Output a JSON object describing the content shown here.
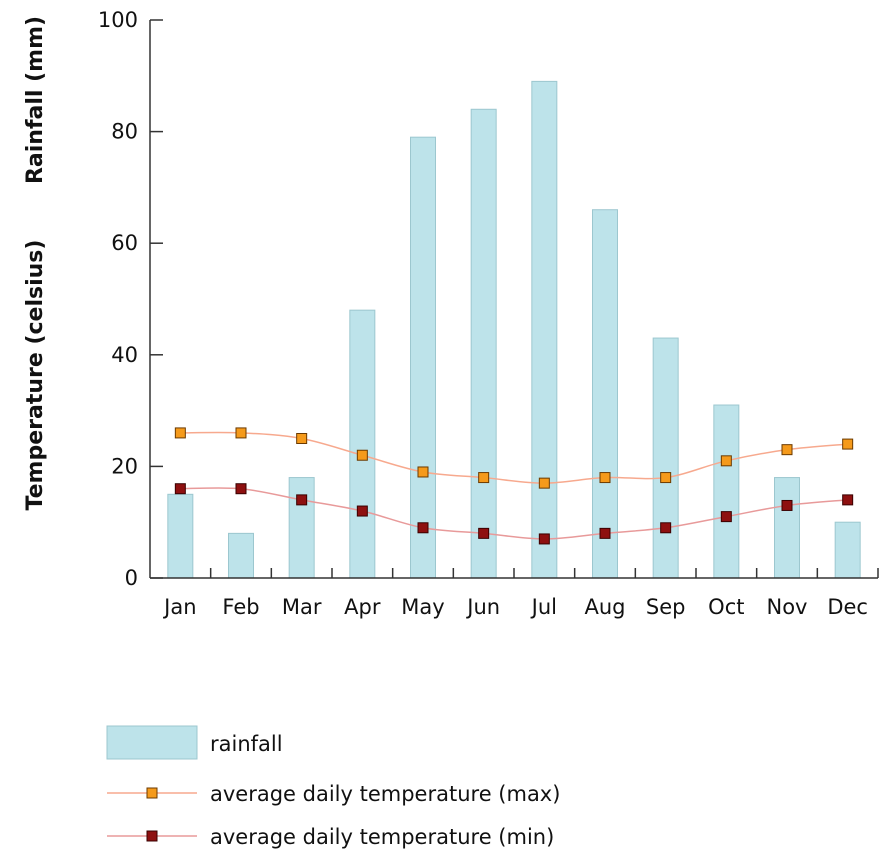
{
  "chart_data": {
    "type": "bar",
    "categories": [
      "Jan",
      "Feb",
      "Mar",
      "Apr",
      "May",
      "Jun",
      "Jul",
      "Aug",
      "Sep",
      "Oct",
      "Nov",
      "Dec"
    ],
    "ylabel_top": "Rainfall (mm)",
    "ylabel_bottom": "Temperature (celsius)",
    "ylim": [
      0,
      100
    ],
    "yticks": [
      "0",
      "20",
      "40",
      "60",
      "80",
      "100"
    ],
    "grid": false,
    "legend_position": "bottom-left",
    "series": [
      {
        "name": "rainfall",
        "type": "bar",
        "color": "#bde3ea",
        "stroke": "#9cc7cf",
        "values": [
          15,
          8,
          18,
          48,
          79,
          84,
          89,
          66,
          43,
          31,
          18,
          10
        ]
      },
      {
        "name": "average daily temperature (max)",
        "type": "line",
        "color": "#f7a98e",
        "marker": "#f59a1b",
        "values": [
          26,
          26,
          25,
          22,
          19,
          18,
          17,
          18,
          18,
          21,
          23,
          24
        ]
      },
      {
        "name": "average daily temperature (min)",
        "type": "line",
        "color": "#e89a9a",
        "marker": "#8e1010",
        "values": [
          16,
          16,
          14,
          12,
          9,
          8,
          7,
          8,
          9,
          11,
          13,
          14
        ]
      }
    ]
  }
}
